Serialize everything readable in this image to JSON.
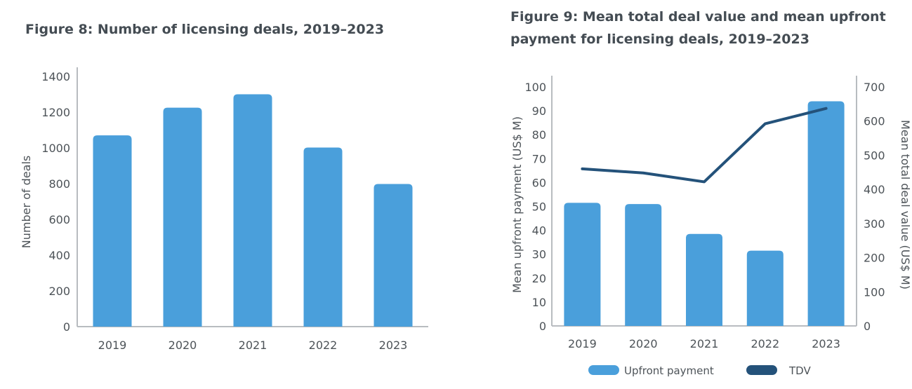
{
  "figure8": {
    "title": "Figure 8: Number of licensing deals, 2019–2023"
  },
  "figure9": {
    "title": "Figure 9: Mean total deal value and mean upfront payment for licensing deals, 2019–2023"
  },
  "colors": {
    "bar": "#4a9fdb",
    "line": "#24527a",
    "axis": "#b8bcc0",
    "text": "#4d5358"
  },
  "chart_data": [
    {
      "type": "bar",
      "title": "Figure 8: Number of licensing deals, 2019–2023",
      "categories": [
        "2019",
        "2020",
        "2021",
        "2022",
        "2023"
      ],
      "values": [
        1070,
        1225,
        1300,
        1002,
        798
      ],
      "xlabel": "",
      "ylabel": "Number of deals",
      "ylim": [
        0,
        1400
      ],
      "yticks": [
        "0",
        "200",
        "400",
        "600",
        "800",
        "1000",
        "1200",
        "1400"
      ],
      "grid": false
    },
    {
      "type": "bar",
      "title": "Figure 9: Mean total deal value and mean upfront payment for licensing deals, 2019–2023",
      "categories": [
        "2019",
        "2020",
        "2021",
        "2022",
        "2023"
      ],
      "series": [
        {
          "name": "Upfront payment",
          "type": "bar",
          "axis": "left",
          "values": [
            51.5,
            51,
            38.5,
            31.5,
            94
          ]
        },
        {
          "name": "TDV",
          "type": "line",
          "axis": "right",
          "values": [
            460,
            448,
            422,
            592,
            637
          ]
        }
      ],
      "ylabel": "Mean upfront payment (US$ M)",
      "ylim": [
        0,
        100
      ],
      "yticks": [
        "0",
        "10",
        "20",
        "30",
        "40",
        "50",
        "60",
        "70",
        "80",
        "90",
        "100"
      ],
      "y2label": "Mean total deal value (US$ M)",
      "y2lim": [
        0,
        700
      ],
      "y2ticks": [
        "0",
        "100",
        "200",
        "300",
        "400",
        "500",
        "600",
        "700"
      ],
      "legend": "bottom",
      "grid": false
    }
  ]
}
